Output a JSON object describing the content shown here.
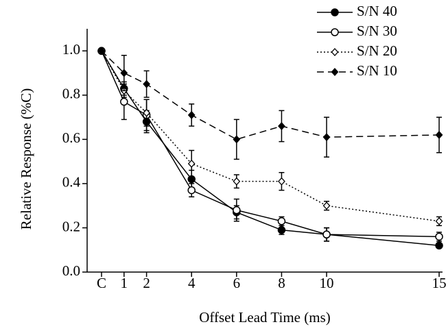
{
  "chart_data": {
    "type": "line",
    "x_label": "Offset Lead Time (ms)",
    "y_label": "Relative Response (%C)",
    "x": [
      0,
      1,
      2,
      4,
      6,
      8,
      10,
      15
    ],
    "xlim": [
      -0.64,
      15.15
    ],
    "xticks": [
      {
        "value": 0,
        "label": "C"
      },
      1,
      2,
      4,
      6,
      8,
      10,
      15
    ],
    "ylim": [
      0,
      1.1
    ],
    "yticks": [
      {
        "value": 0,
        "label": "0.0"
      },
      0.2,
      0.4,
      0.6,
      0.8,
      {
        "value": 1,
        "label": "1.0"
      }
    ],
    "legend": "upper right",
    "series": [
      {
        "name": "S/N 40",
        "color": "#000000",
        "marker": "circle",
        "filled": true,
        "dash": "solid",
        "values": [
          1.0,
          0.83,
          0.68,
          0.42,
          0.27,
          0.19,
          0.17,
          0.12
        ],
        "errors": [
          null,
          0.03,
          0.05,
          0.04,
          0.03,
          0.02,
          0.03,
          0.01
        ]
      },
      {
        "name": "S/N 30",
        "color": "#000000",
        "marker": "circle",
        "filled": false,
        "dash": "solid",
        "values": [
          1.0,
          0.77,
          0.71,
          0.37,
          0.28,
          0.23,
          0.17,
          0.16
        ],
        "errors": [
          null,
          0.08,
          0.07,
          0.03,
          0.05,
          0.02,
          0.03,
          0.02
        ]
      },
      {
        "name": "S/N 20",
        "color": "#000000",
        "marker": "diamond",
        "filled": false,
        "dash": "dotted",
        "values": [
          1.0,
          0.82,
          0.72,
          0.49,
          0.41,
          0.41,
          0.3,
          0.23
        ],
        "errors": [
          null,
          0.03,
          0.06,
          0.06,
          0.03,
          0.04,
          0.02,
          0.02
        ]
      },
      {
        "name": "S/N 10",
        "color": "#000000",
        "marker": "diamond",
        "filled": true,
        "dash": "dashed",
        "values": [
          1.0,
          0.9,
          0.85,
          0.71,
          0.6,
          0.66,
          0.61,
          0.62
        ],
        "errors": [
          null,
          0.08,
          0.06,
          0.05,
          0.09,
          0.07,
          0.09,
          0.08
        ]
      }
    ]
  }
}
